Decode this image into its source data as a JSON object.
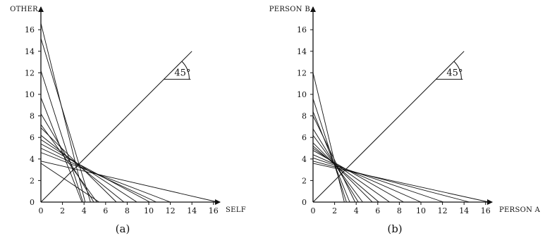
{
  "panels": [
    {
      "id": "a",
      "caption": "(a)",
      "x_axis_label": "SELF",
      "y_axis_label": "OTHER",
      "angle_label": "45°",
      "x_ticks": [
        "0",
        "2",
        "4",
        "6",
        "8",
        "10",
        "12",
        "14",
        "16"
      ],
      "y_ticks": [
        "0",
        "2",
        "4",
        "6",
        "8",
        "10",
        "12",
        "14",
        "16"
      ],
      "budget_lines": [
        [
          0,
          16.6,
          4.1,
          0
        ],
        [
          0,
          15.2,
          4.6,
          0
        ],
        [
          0,
          12.2,
          3.9,
          0
        ],
        [
          0,
          9.7,
          3.8,
          0
        ],
        [
          0,
          8.2,
          4.9,
          0
        ],
        [
          0,
          7.2,
          5.2,
          0
        ],
        [
          0,
          6.9,
          7.0,
          0
        ],
        [
          0,
          6.2,
          7.7,
          0
        ],
        [
          0,
          5.8,
          8.9,
          0
        ],
        [
          0,
          5.4,
          10.1,
          0
        ],
        [
          0,
          5.0,
          10.7,
          0
        ],
        [
          0,
          4.6,
          12.0,
          0
        ],
        [
          0,
          3.8,
          16.4,
          0
        ],
        [
          0,
          3.6,
          5.4,
          0
        ]
      ]
    },
    {
      "id": "b",
      "caption": "(b)",
      "x_axis_label": "PERSON A",
      "y_axis_label": "PERSON B",
      "angle_label": "45°",
      "x_ticks": [
        "0",
        "2",
        "4",
        "6",
        "8",
        "10",
        "12",
        "14",
        "16"
      ],
      "y_ticks": [
        "0",
        "2",
        "4",
        "6",
        "8",
        "10",
        "12",
        "14",
        "16"
      ],
      "budget_lines": [
        [
          0,
          12.0,
          2.9,
          0
        ],
        [
          0,
          9.6,
          3.1,
          0
        ],
        [
          0,
          8.4,
          3.4,
          0
        ],
        [
          0,
          8.0,
          3.9,
          0
        ],
        [
          0,
          6.8,
          4.2,
          0
        ],
        [
          0,
          6.2,
          4.6,
          0
        ],
        [
          0,
          5.5,
          5.5,
          0
        ],
        [
          0,
          5.2,
          6.1,
          0
        ],
        [
          0,
          5.0,
          7.1,
          0
        ],
        [
          0,
          4.8,
          8.4,
          0
        ],
        [
          0,
          4.4,
          10.0,
          0
        ],
        [
          0,
          4.1,
          12.1,
          0
        ],
        [
          0,
          3.8,
          14.5,
          0
        ],
        [
          0,
          3.6,
          16.3,
          0
        ]
      ]
    }
  ]
}
